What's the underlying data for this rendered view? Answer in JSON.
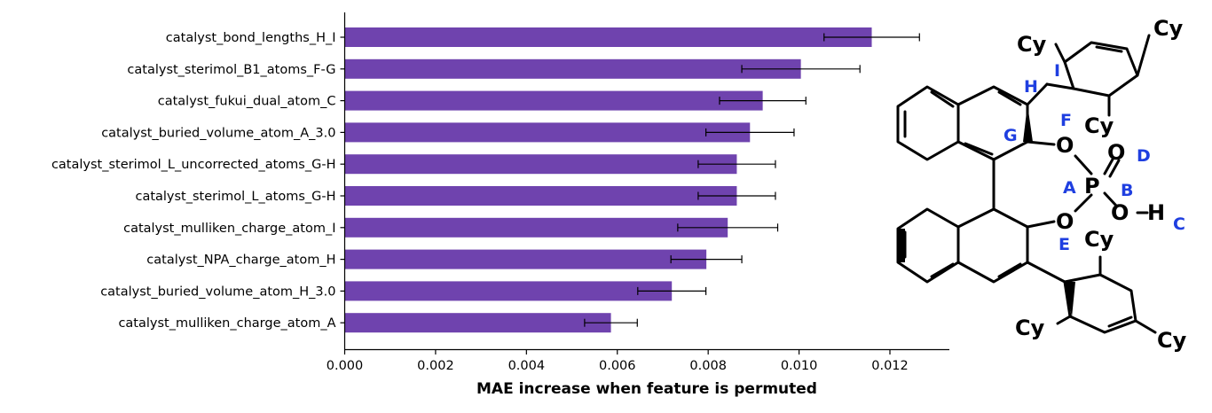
{
  "chart_data": {
    "type": "bar",
    "orientation": "horizontal",
    "title": "",
    "xlabel": "MAE increase when feature is permuted",
    "ylabel": "",
    "xlim": [
      0,
      0.0133
    ],
    "xticks": [
      "0.000",
      "0.002",
      "0.004",
      "0.006",
      "0.008",
      "0.010",
      "0.012"
    ],
    "xtick_values": [
      0,
      0.002,
      0.004,
      0.006,
      0.008,
      0.01,
      0.012
    ],
    "bar_color": "#6f43ae",
    "categories": [
      "catalyst_bond_lengths_H_I",
      "catalyst_sterimol_B1_atoms_F-G",
      "catalyst_fukui_dual_atom_C",
      "catalyst_buried_volume_atom_A_3.0",
      "catalyst_sterimol_L_uncorrected_atoms_G-H",
      "catalyst_sterimol_L_atoms_G-H",
      "catalyst_mulliken_charge_atom_I",
      "catalyst_NPA_charge_atom_H",
      "catalyst_buried_volume_atom_H_3.0",
      "catalyst_mulliken_charge_atom_A"
    ],
    "values": [
      0.0116,
      0.01004,
      0.0092,
      0.00892,
      0.00863,
      0.00863,
      0.00843,
      0.00796,
      0.0072,
      0.00586
    ],
    "errors": [
      0.00105,
      0.0013,
      0.00095,
      0.00097,
      0.00085,
      0.00085,
      0.0011,
      0.00078,
      0.00075,
      0.00058
    ]
  },
  "molecule": {
    "substituent": "Cy",
    "atoms": {
      "oxygen": "O",
      "phosphorus": "P",
      "hydrogen": "H"
    },
    "site_labels": [
      "A",
      "B",
      "C",
      "D",
      "E",
      "F",
      "G",
      "H",
      "I"
    ],
    "label_color": "#1f3fe0"
  }
}
